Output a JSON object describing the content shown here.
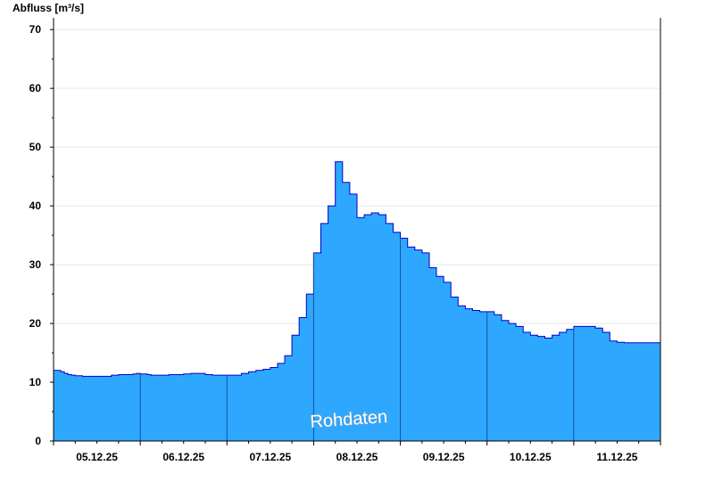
{
  "chart_data": {
    "type": "area",
    "title": "",
    "ylabel": "Abfluss [m³/s]",
    "xlabel": "",
    "ylim": [
      0,
      72
    ],
    "yticks": [
      0,
      10,
      20,
      30,
      40,
      50,
      60,
      70
    ],
    "grid": true,
    "x_start": "05.12.25 00:00",
    "x_end": "11.12.25 24:00",
    "x_tick_labels": [
      "05.12.25",
      "06.12.25",
      "07.12.25",
      "08.12.25",
      "09.12.25",
      "10.12.25",
      "11.12.25"
    ],
    "fill_color": "#2ea8ff",
    "line_color": "#0000cc",
    "annotation": "Rohdaten",
    "series": [
      {
        "x_hours": [
          0,
          1,
          2,
          3,
          4,
          5,
          6,
          8,
          10,
          12,
          14,
          16,
          18,
          20,
          22,
          23,
          24,
          26,
          27,
          28,
          30,
          32,
          34,
          36,
          38,
          40,
          42,
          44,
          46,
          48,
          50,
          52,
          54,
          56,
          58,
          60,
          62,
          64,
          66,
          68,
          70,
          72,
          74,
          76,
          78,
          80,
          82,
          84,
          86,
          88,
          90,
          92,
          94,
          96,
          98,
          100,
          102,
          104,
          106,
          108,
          110,
          112,
          114,
          116,
          118,
          120,
          122,
          124,
          126,
          128,
          130,
          132,
          134,
          136,
          138,
          140,
          142,
          144,
          146,
          148,
          150,
          152,
          154,
          156,
          158,
          160,
          162,
          164,
          166,
          168
        ],
        "values": [
          12,
          12,
          11.8,
          11.5,
          11.3,
          11.2,
          11.1,
          11,
          11,
          11,
          11,
          11.2,
          11.3,
          11.3,
          11.4,
          11.5,
          11.4,
          11.3,
          11.2,
          11.2,
          11.2,
          11.3,
          11.3,
          11.4,
          11.5,
          11.5,
          11.3,
          11.2,
          11.2,
          11.2,
          11.2,
          11.5,
          11.8,
          12,
          12.2,
          12.5,
          13.2,
          14.5,
          18,
          21,
          25,
          32,
          37,
          40,
          47.5,
          44,
          42,
          38,
          38.5,
          38.8,
          38.5,
          37,
          35.5,
          34.5,
          33,
          32.5,
          32,
          29.5,
          28,
          27,
          24.5,
          23,
          22.5,
          22.2,
          22,
          22,
          21.5,
          20.5,
          20,
          19.5,
          18.5,
          18,
          17.8,
          17.5,
          18,
          18.5,
          19,
          19.5,
          19.5,
          19.5,
          19.2,
          18.5,
          17,
          16.8,
          16.7,
          16.7,
          16.7,
          16.7,
          16.7,
          16.7
        ]
      }
    ]
  }
}
